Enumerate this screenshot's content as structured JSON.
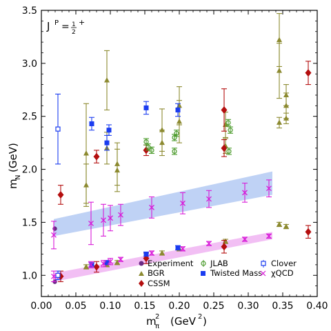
{
  "chart_data": {
    "type": "scatter",
    "title": "",
    "annotation": {
      "base": "J",
      "superscript": "P",
      "equals": "=",
      "frac_num": "1",
      "frac_den": "2",
      "sign": "+"
    },
    "xlabel": {
      "base": "m",
      "subscript": "π",
      "superscript": "2",
      "unit": "(GeV",
      "unit_sup": "2",
      "unit_close": ")"
    },
    "ylabel": {
      "base": "m",
      "subscript": "N",
      "unit": "(GeV)"
    },
    "xlim": [
      0.0,
      0.4
    ],
    "ylim": [
      0.8,
      3.5
    ],
    "xticks": [
      "0.00",
      "0.05",
      "0.10",
      "0.15",
      "0.20",
      "0.25",
      "0.30",
      "0.35",
      "0.40"
    ],
    "xtick_values": [
      0.0,
      0.05,
      0.1,
      0.15,
      0.2,
      0.25,
      0.3,
      0.35,
      0.4
    ],
    "yticks": [
      "1.0",
      "1.5",
      "2.0",
      "2.5",
      "3.0",
      "3.5"
    ],
    "ytick_values": [
      1.0,
      1.5,
      2.0,
      2.5,
      3.0,
      3.5
    ],
    "grid": false,
    "legend_placement": "bottom-right",
    "bands": [
      {
        "name": "",
        "color": "#a9c3f2",
        "x": [
          0.018,
          0.335
        ],
        "lower": [
          1.37,
          1.76
        ],
        "upper": [
          1.53,
          1.98
        ]
      },
      {
        "name": "",
        "color": "#eeaaf0",
        "x": [
          0.018,
          0.335
        ],
        "lower": [
          0.94,
          1.34
        ],
        "upper": [
          1.02,
          1.41
        ]
      }
    ],
    "series": [
      {
        "name": "Experiment",
        "marker": "circle-filled",
        "color": "#6b2a85",
        "points": [
          {
            "x": 0.0195,
            "y": 0.939,
            "err": 0
          },
          {
            "x": 0.0195,
            "y": 1.44,
            "err": 0
          }
        ]
      },
      {
        "name": "BGR",
        "marker": "triangle",
        "color": "#8c8a30",
        "points": [
          {
            "x": 0.065,
            "y": 1.08,
            "err": 0.02
          },
          {
            "x": 0.065,
            "y": 1.85,
            "err": 0.2
          },
          {
            "x": 0.065,
            "y": 2.15,
            "err": 0.47
          },
          {
            "x": 0.095,
            "y": 1.1,
            "err": 0.02
          },
          {
            "x": 0.095,
            "y": 2.2,
            "err": 0.15
          },
          {
            "x": 0.095,
            "y": 2.84,
            "err": 0.28
          },
          {
            "x": 0.11,
            "y": 1.12,
            "err": 0.02
          },
          {
            "x": 0.11,
            "y": 1.99,
            "err": 0.2
          },
          {
            "x": 0.11,
            "y": 2.05,
            "err": 0.2
          },
          {
            "x": 0.175,
            "y": 1.21,
            "err": 0.02
          },
          {
            "x": 0.175,
            "y": 2.25,
            "err": 0.12
          },
          {
            "x": 0.175,
            "y": 2.37,
            "err": 0.2
          },
          {
            "x": 0.2,
            "y": 1.25,
            "err": 0.02
          },
          {
            "x": 0.2,
            "y": 2.45,
            "err": 0.2
          },
          {
            "x": 0.2,
            "y": 2.6,
            "err": 0.18
          },
          {
            "x": 0.267,
            "y": 1.32,
            "err": 0.02
          },
          {
            "x": 0.267,
            "y": 2.22,
            "err": 0.07
          },
          {
            "x": 0.267,
            "y": 2.42,
            "err": 0.12
          },
          {
            "x": 0.345,
            "y": 1.48,
            "err": 0.02
          },
          {
            "x": 0.345,
            "y": 2.44,
            "err": 0.05
          },
          {
            "x": 0.345,
            "y": 2.93,
            "err": 0.26
          },
          {
            "x": 0.345,
            "y": 3.22,
            "err": 0.25
          },
          {
            "x": 0.355,
            "y": 1.46,
            "err": 0.02
          },
          {
            "x": 0.355,
            "y": 2.48,
            "err": 0.05
          },
          {
            "x": 0.355,
            "y": 2.6,
            "err": 0.12
          },
          {
            "x": 0.355,
            "y": 2.7,
            "err": 0.1
          }
        ]
      },
      {
        "name": "CSSM",
        "marker": "diamond-filled",
        "color": "#b40e0e",
        "points": [
          {
            "x": 0.028,
            "y": 0.99,
            "err": 0.05
          },
          {
            "x": 0.028,
            "y": 1.76,
            "err": 0.09
          },
          {
            "x": 0.08,
            "y": 1.08,
            "err": 0.05
          },
          {
            "x": 0.08,
            "y": 2.12,
            "err": 0.06
          },
          {
            "x": 0.152,
            "y": 1.16,
            "err": 0.05
          },
          {
            "x": 0.152,
            "y": 2.18,
            "err": 0.05
          },
          {
            "x": 0.265,
            "y": 1.27,
            "err": 0.06
          },
          {
            "x": 0.265,
            "y": 2.2,
            "err": 0.08
          },
          {
            "x": 0.265,
            "y": 2.56,
            "err": 0.2
          },
          {
            "x": 0.387,
            "y": 1.41,
            "err": 0.06
          },
          {
            "x": 0.387,
            "y": 2.91,
            "err": 0.11
          }
        ]
      },
      {
        "name": "JLAB",
        "marker": "circle-open",
        "color": "#4a9a2a",
        "points": [
          {
            "x": 0.152,
            "y": 2.26,
            "err": 0.03
          },
          {
            "x": 0.155,
            "y": 2.21,
            "err": 0.03
          },
          {
            "x": 0.16,
            "y": 2.18,
            "err": 0.03
          },
          {
            "x": 0.193,
            "y": 2.3,
            "err": 0.03
          },
          {
            "x": 0.196,
            "y": 2.34,
            "err": 0.03
          },
          {
            "x": 0.193,
            "y": 2.17,
            "err": 0.03
          },
          {
            "x": 0.271,
            "y": 2.44,
            "err": 0.03
          },
          {
            "x": 0.274,
            "y": 2.37,
            "err": 0.03
          },
          {
            "x": 0.272,
            "y": 2.17,
            "err": 0.03
          }
        ]
      },
      {
        "name": "Twisted Mass",
        "marker": "square-filled",
        "color": "#1a3cf0",
        "points": [
          {
            "x": 0.073,
            "y": 1.1,
            "err": 0.02
          },
          {
            "x": 0.073,
            "y": 2.43,
            "err": 0.06
          },
          {
            "x": 0.095,
            "y": 1.12,
            "err": 0.02
          },
          {
            "x": 0.095,
            "y": 2.25,
            "err": 0.07
          },
          {
            "x": 0.098,
            "y": 2.37,
            "err": 0.05
          },
          {
            "x": 0.152,
            "y": 1.2,
            "err": 0.02
          },
          {
            "x": 0.152,
            "y": 2.58,
            "err": 0.06
          },
          {
            "x": 0.198,
            "y": 1.26,
            "err": 0.02
          },
          {
            "x": 0.198,
            "y": 2.56,
            "err": 0.06
          }
        ]
      },
      {
        "name": "Clover",
        "marker": "square-open",
        "color": "#1a3cf0",
        "points": [
          {
            "x": 0.024,
            "y": 1.0,
            "err": 0.04
          },
          {
            "x": 0.024,
            "y": 2.38,
            "err": 0.33
          }
        ]
      },
      {
        "name": "χQCD",
        "marker": "x",
        "color": "#d81ad8",
        "points": [
          {
            "x": 0.018,
            "y": 0.99,
            "err": 0.05
          },
          {
            "x": 0.018,
            "y": 1.38,
            "err": 0.13
          },
          {
            "x": 0.072,
            "y": 1.1,
            "err": 0.03
          },
          {
            "x": 0.072,
            "y": 1.49,
            "err": 0.2
          },
          {
            "x": 0.09,
            "y": 1.11,
            "err": 0.03
          },
          {
            "x": 0.09,
            "y": 1.52,
            "err": 0.15
          },
          {
            "x": 0.1,
            "y": 1.13,
            "err": 0.03
          },
          {
            "x": 0.1,
            "y": 1.54,
            "err": 0.12
          },
          {
            "x": 0.115,
            "y": 1.15,
            "err": 0.02
          },
          {
            "x": 0.115,
            "y": 1.57,
            "err": 0.1
          },
          {
            "x": 0.16,
            "y": 1.21,
            "err": 0.02
          },
          {
            "x": 0.16,
            "y": 1.64,
            "err": 0.1
          },
          {
            "x": 0.205,
            "y": 1.25,
            "err": 0.02
          },
          {
            "x": 0.205,
            "y": 1.68,
            "err": 0.1
          },
          {
            "x": 0.243,
            "y": 1.3,
            "err": 0.02
          },
          {
            "x": 0.243,
            "y": 1.72,
            "err": 0.08
          },
          {
            "x": 0.295,
            "y": 1.34,
            "err": 0.02
          },
          {
            "x": 0.295,
            "y": 1.78,
            "err": 0.09
          },
          {
            "x": 0.33,
            "y": 1.37,
            "err": 0.02
          },
          {
            "x": 0.33,
            "y": 1.82,
            "err": 0.08
          }
        ]
      }
    ]
  }
}
